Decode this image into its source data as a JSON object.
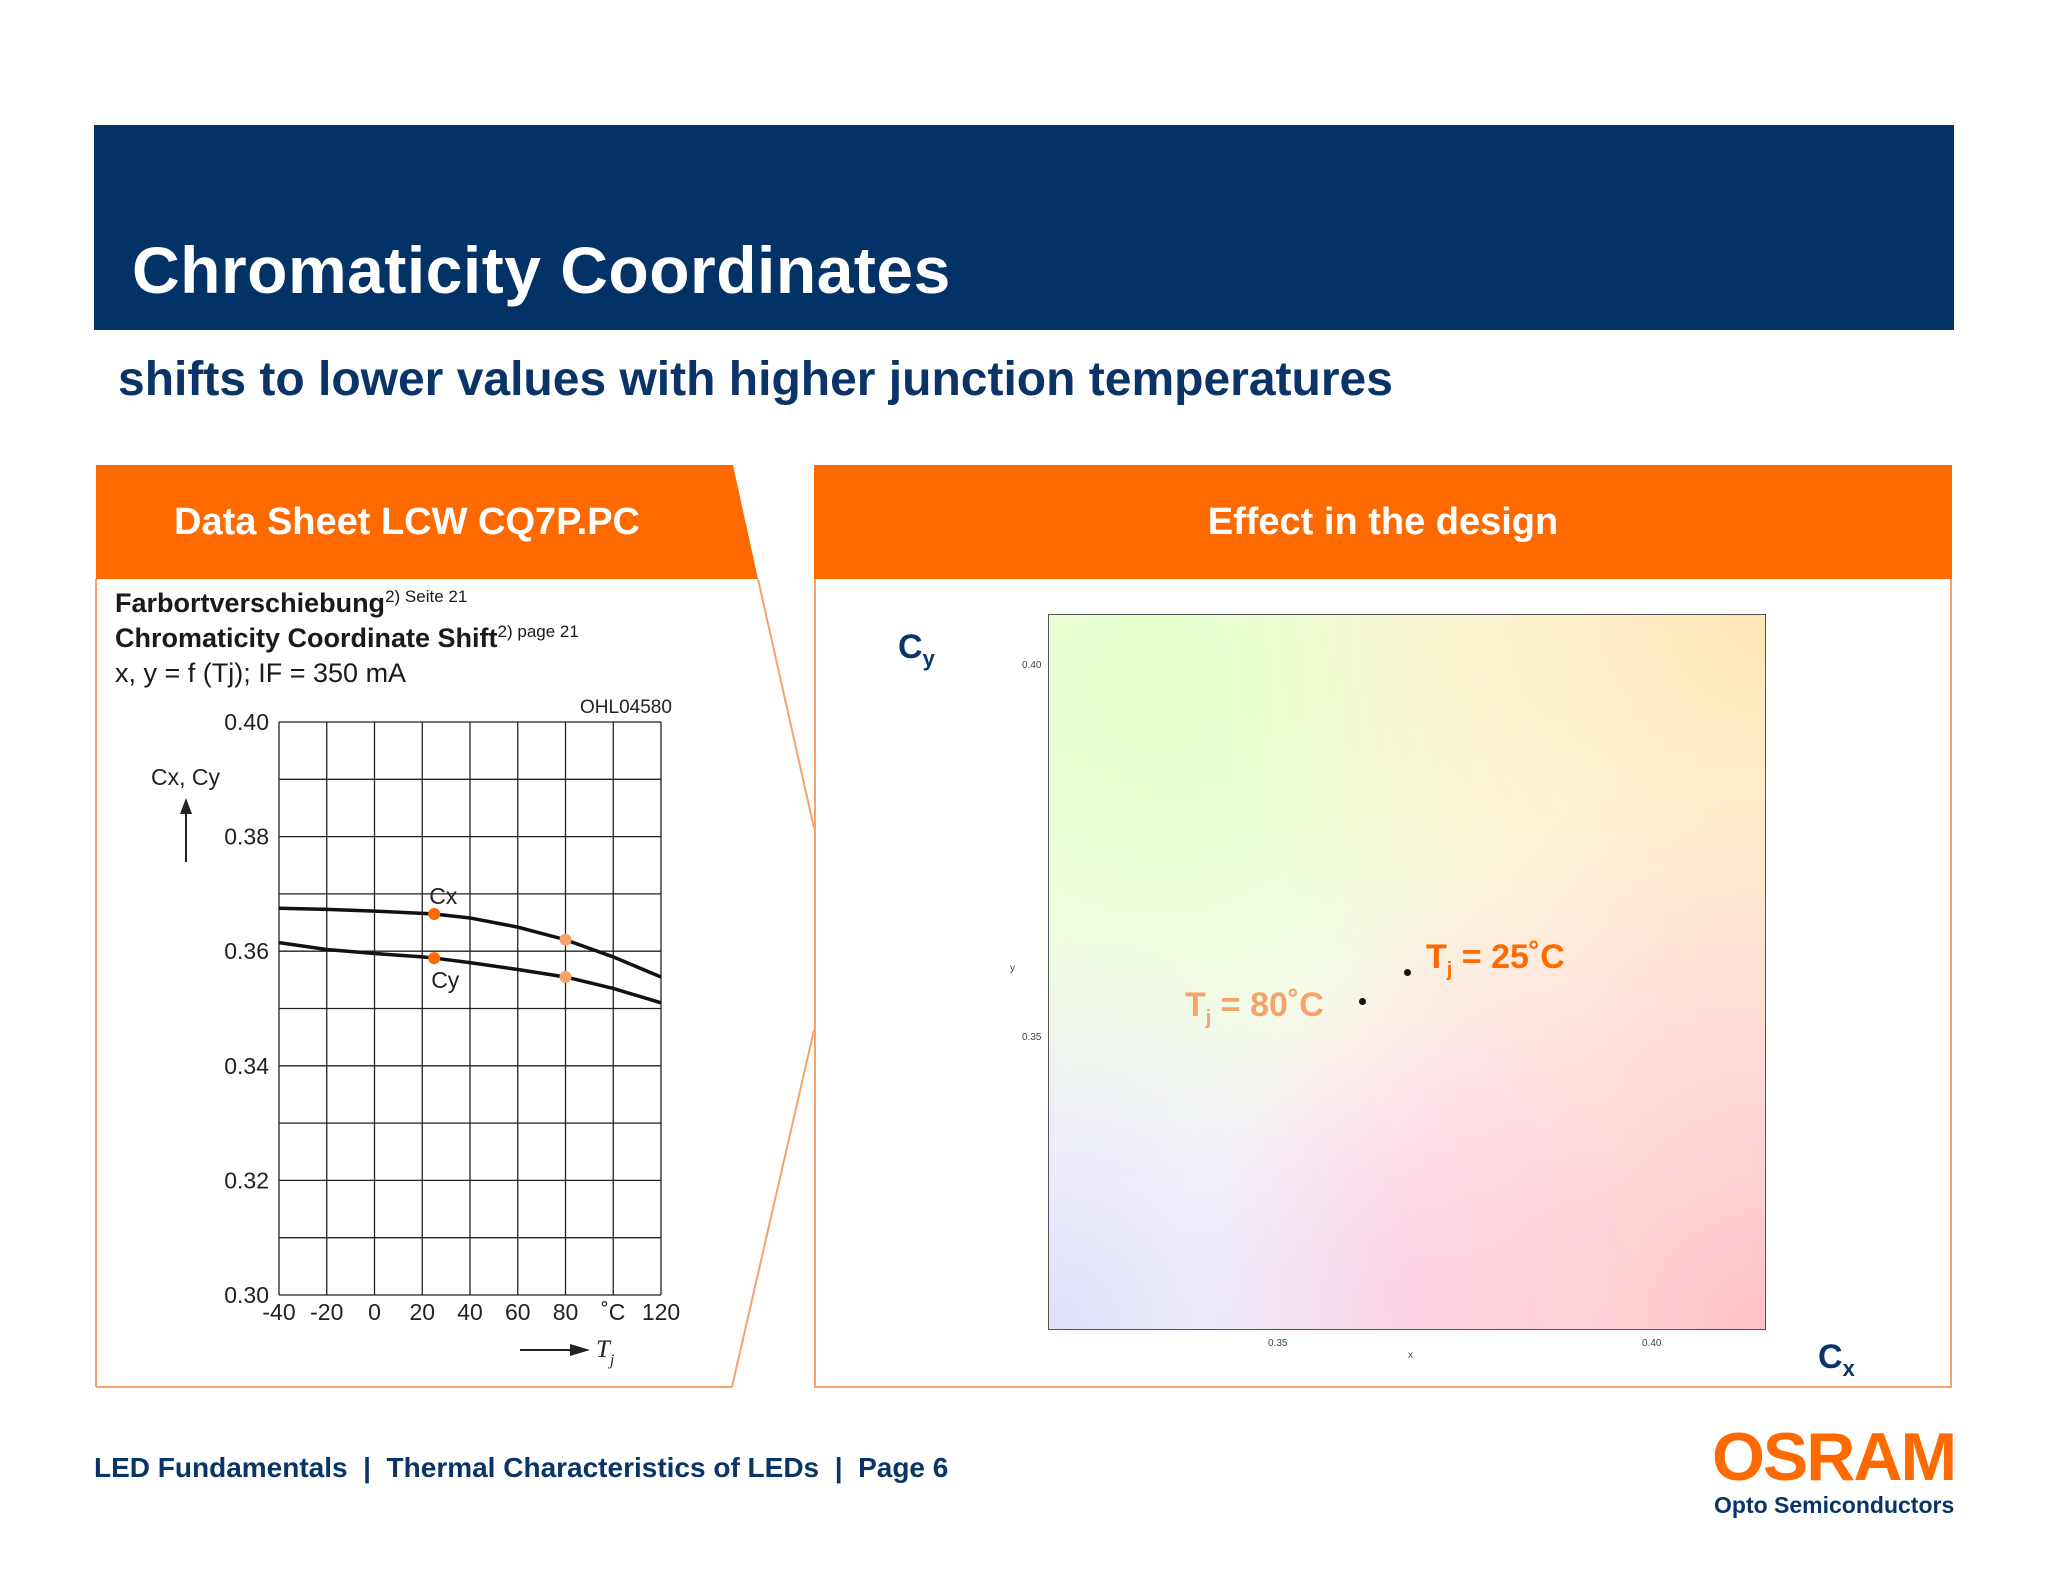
{
  "header": {
    "title": "Chromaticity Coordinates",
    "subtitle": "shifts to lower values with higher junction temperatures"
  },
  "left_panel": {
    "heading": "Data Sheet LCW CQ7P.PC",
    "line1": "Farbortverschiebung",
    "line1_sup": "2) Seite 21",
    "line2": "Chromaticity Coordinate Shift",
    "line2_sup": "2) page 21",
    "line3": "x, y = f (Tj); IF = 350 mA",
    "doc_code": "OHL04580"
  },
  "right_panel": {
    "heading": "Effect in the design",
    "cy_label": "C",
    "cy_sub": "y",
    "cx_label": "C",
    "cx_sub": "x",
    "x_tick_1": "0.35",
    "x_tick_2": "0.40",
    "y_tick_1": "0.40",
    "y_tick_2": "0.35",
    "x_axis_small": "x",
    "y_axis_small": "y",
    "tj25_pre": "T",
    "tj25_sub": "j",
    "tj25_post": " = 25˚C",
    "tj80_pre": "T",
    "tj80_sub": "j",
    "tj80_post": " = 80˚C"
  },
  "chart_data": {
    "type": "line",
    "title": "Chromaticity Coordinate Shift",
    "xlabel": "Tj",
    "ylabel": "Cx, Cy",
    "x_unit": "˚C",
    "x_ticks": [
      "-40",
      "-20",
      "0",
      "20",
      "40",
      "60",
      "80",
      "˚C",
      "120"
    ],
    "y_ticks": [
      "0.40",
      "0.38",
      "0.36",
      "0.34",
      "0.32",
      "0.30"
    ],
    "xlim": [
      -40,
      120
    ],
    "ylim": [
      0.3,
      0.4
    ],
    "grid": true,
    "x": [
      -40,
      -20,
      0,
      20,
      25,
      40,
      60,
      80,
      100,
      120
    ],
    "series": [
      {
        "name": "Cx",
        "values": [
          0.3675,
          0.3673,
          0.367,
          0.3666,
          0.3665,
          0.3658,
          0.3642,
          0.362,
          0.359,
          0.3555
        ]
      },
      {
        "name": "Cy",
        "values": [
          0.3615,
          0.3603,
          0.3596,
          0.359,
          0.3588,
          0.358,
          0.3568,
          0.3555,
          0.3535,
          0.351
        ]
      }
    ],
    "markers": [
      {
        "series": "Cx",
        "x": 25,
        "y": 0.3665,
        "color": "#ff6a00"
      },
      {
        "series": "Cy",
        "x": 25,
        "y": 0.3588,
        "color": "#ff6a00"
      },
      {
        "series": "Cx",
        "x": 80,
        "y": 0.362,
        "color": "#f5a36b"
      },
      {
        "series": "Cy",
        "x": 80,
        "y": 0.3555,
        "color": "#f5a36b"
      }
    ]
  },
  "footer": {
    "text": "LED Fundamentals  |  Thermal Characteristics of LEDs  |  Page 6"
  },
  "logo": {
    "name": "OSRAM",
    "tagline": "Opto Semiconductors"
  },
  "colors": {
    "navy": "#033366",
    "orange": "#ff6a00",
    "light_orange": "#f5a36b"
  }
}
